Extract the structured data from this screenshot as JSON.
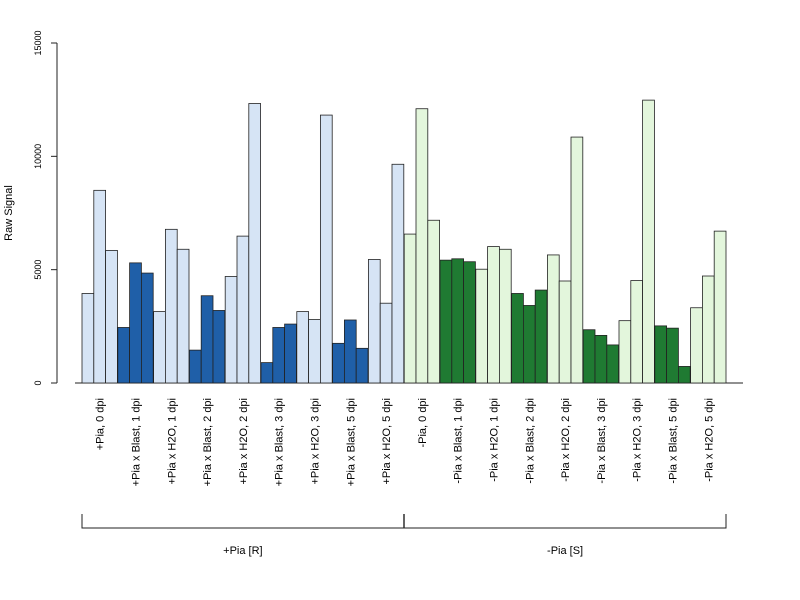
{
  "chart_data": {
    "type": "bar",
    "ylabel": "Raw Signal",
    "xlabel": "",
    "title": "",
    "ylim": [
      0,
      15000
    ],
    "yticks": [
      0,
      5000,
      10000,
      15000
    ],
    "grid": false,
    "legend": "none",
    "bars_per_group": 3,
    "colors": {
      "pia_pos_h2o": "#d6e4f5",
      "pia_pos_blast": "#1f5fa8",
      "pia_neg_h2o": "#e3f6dc",
      "pia_neg_blast": "#1f7a32",
      "outline": "#222222"
    },
    "categories": [
      {
        "label": "+Pia, 0 dpi",
        "values": [
          3950,
          8500,
          5850
        ],
        "color": "pia_pos_h2o"
      },
      {
        "label": "+Pia x Blast, 1 dpi",
        "values": [
          2450,
          5300,
          4850
        ],
        "color": "pia_pos_blast"
      },
      {
        "label": "+Pia x H2O, 1 dpi",
        "values": [
          3150,
          6780,
          5900
        ],
        "color": "pia_pos_h2o"
      },
      {
        "label": "+Pia x Blast, 2 dpi",
        "values": [
          1450,
          3850,
          3200
        ],
        "color": "pia_pos_blast"
      },
      {
        "label": "+Pia x H2O, 2 dpi",
        "values": [
          4700,
          6480,
          12330
        ],
        "color": "pia_pos_h2o"
      },
      {
        "label": "+Pia x Blast, 3 dpi",
        "values": [
          900,
          2450,
          2600
        ],
        "color": "pia_pos_blast"
      },
      {
        "label": "+Pia x H2O, 3 dpi",
        "values": [
          3150,
          2800,
          11820
        ],
        "color": "pia_pos_h2o"
      },
      {
        "label": "+Pia x Blast, 5 dpi",
        "values": [
          1750,
          2780,
          1530
        ],
        "color": "pia_pos_blast"
      },
      {
        "label": "+Pia x H2O, 5 dpi",
        "values": [
          5450,
          3520,
          9650
        ],
        "color": "pia_pos_h2o"
      },
      {
        "label": "-Pia, 0 dpi",
        "values": [
          6570,
          12100,
          7180
        ],
        "color": "pia_neg_h2o"
      },
      {
        "label": "-Pia x Blast, 1 dpi",
        "values": [
          5420,
          5480,
          5350
        ],
        "color": "pia_neg_blast"
      },
      {
        "label": "-Pia x H2O, 1 dpi",
        "values": [
          5020,
          6020,
          5900
        ],
        "color": "pia_neg_h2o"
      },
      {
        "label": "-Pia x Blast, 2 dpi",
        "values": [
          3950,
          3420,
          4100
        ],
        "color": "pia_neg_blast"
      },
      {
        "label": "-Pia x H2O, 2 dpi",
        "values": [
          5650,
          4500,
          10850
        ],
        "color": "pia_neg_h2o"
      },
      {
        "label": "-Pia x Blast, 3 dpi",
        "values": [
          2350,
          2100,
          1680
        ],
        "color": "pia_neg_blast"
      },
      {
        "label": "-Pia x H2O, 3 dpi",
        "values": [
          2750,
          4520,
          12480
        ],
        "color": "pia_neg_h2o"
      },
      {
        "label": "-Pia x Blast, 5 dpi",
        "values": [
          2520,
          2420,
          730
        ],
        "color": "pia_neg_blast"
      },
      {
        "label": "-Pia x H2O, 5 dpi",
        "values": [
          3320,
          4720,
          6700
        ],
        "color": "pia_neg_h2o"
      }
    ],
    "groups": [
      {
        "label": "+Pia [R]",
        "first": 0,
        "last": 8
      },
      {
        "label": "-Pia [S]",
        "first": 9,
        "last": 17
      }
    ]
  }
}
